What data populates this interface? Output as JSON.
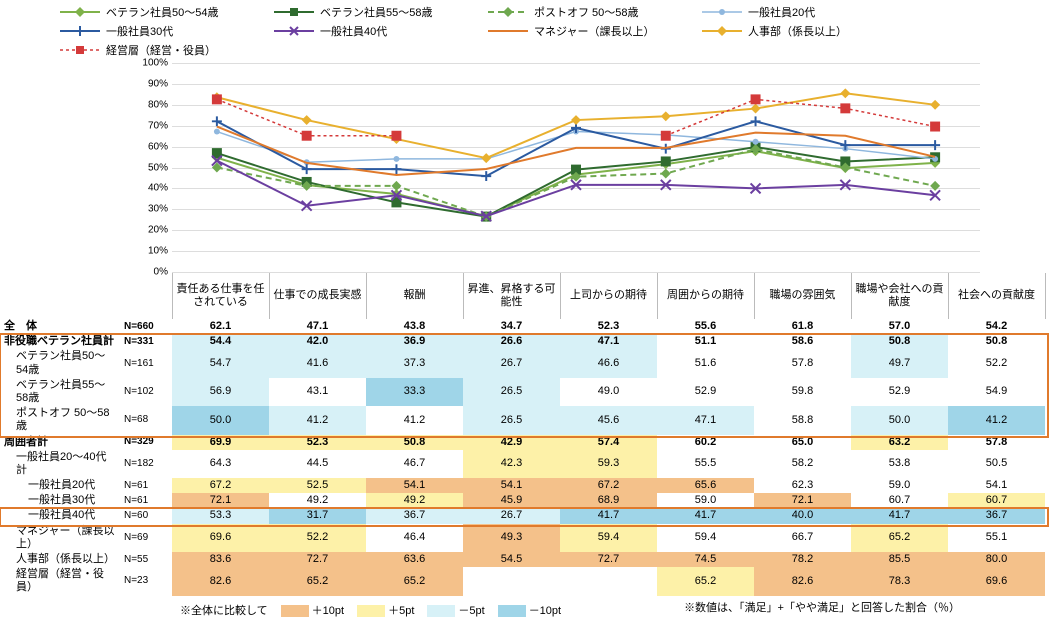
{
  "chart": {
    "ylim": [
      0,
      100
    ],
    "ytick_step": 10,
    "ytick_suffix": "%",
    "grid_color": "#dddddd",
    "axis_color": "#bbbbbb",
    "categories": [
      "責任ある仕事を任されている",
      "仕事での成長実感",
      "報酬",
      "昇進、昇格する可能性",
      "上司からの期待",
      "周囲からの期待",
      "職場の雰囲気",
      "職場や会社への貢献度",
      "社会への貢献度"
    ],
    "series": [
      {
        "key": "vet5054",
        "label": "ベテラン社員50～54歳",
        "color": "#7fb24a",
        "dash": null,
        "marker": "diamond",
        "ms": 5,
        "lw": 2,
        "values": [
          54.7,
          41.6,
          37.3,
          26.7,
          46.6,
          51.6,
          57.8,
          49.7,
          52.2
        ]
      },
      {
        "key": "vet5558",
        "label": "ベテラン社員55～58歳",
        "color": "#2f6b2f",
        "dash": null,
        "marker": "square",
        "ms": 5,
        "lw": 2,
        "values": [
          56.9,
          43.1,
          33.3,
          26.5,
          49.0,
          52.9,
          59.8,
          52.9,
          54.9
        ]
      },
      {
        "key": "postoff",
        "label": "ポストオフ 50～58歳",
        "color": "#6fa84f",
        "dash": "6 4",
        "marker": "diamond",
        "ms": 5,
        "lw": 2,
        "values": [
          50.0,
          41.2,
          41.2,
          26.5,
          45.6,
          47.1,
          58.8,
          50.0,
          41.2
        ]
      },
      {
        "key": "ippan20",
        "label": "一般社員20代",
        "color": "#8fb7de",
        "dash": null,
        "marker": "circle",
        "ms": 3,
        "lw": 1.5,
        "values": [
          67.2,
          52.5,
          54.1,
          54.1,
          67.2,
          65.6,
          62.3,
          59.0,
          54.1
        ]
      },
      {
        "key": "ippan30",
        "label": "一般社員30代",
        "color": "#2b5aa0",
        "dash": null,
        "marker": "plus",
        "ms": 5,
        "lw": 2,
        "values": [
          72.1,
          49.2,
          49.2,
          45.9,
          68.9,
          59.0,
          72.1,
          60.7,
          60.7
        ]
      },
      {
        "key": "ippan40",
        "label": "一般社員40代",
        "color": "#6b3fa0",
        "dash": null,
        "marker": "x",
        "ms": 5,
        "lw": 2,
        "values": [
          53.3,
          31.7,
          36.7,
          26.7,
          41.7,
          41.7,
          40.0,
          41.7,
          36.7
        ]
      },
      {
        "key": "mgr",
        "label": "マネジャー（課長以上）",
        "color": "#e07a2c",
        "dash": null,
        "marker": null,
        "ms": 0,
        "lw": 2,
        "values": [
          69.6,
          52.2,
          46.4,
          49.3,
          59.4,
          59.4,
          66.7,
          65.2,
          55.1
        ]
      },
      {
        "key": "hr",
        "label": "人事部（係長以上）",
        "color": "#e8b02e",
        "dash": null,
        "marker": "diamond",
        "ms": 5,
        "lw": 2,
        "values": [
          83.6,
          72.7,
          63.6,
          54.5,
          72.7,
          74.5,
          78.2,
          85.5,
          80.0
        ]
      },
      {
        "key": "exec",
        "label": "経営層（経営・役員）",
        "color": "#d43a3a",
        "dash": "3 3",
        "marker": "square",
        "ms": 5,
        "lw": 1.5,
        "values": [
          82.6,
          65.2,
          65.2,
          null,
          null,
          65.2,
          82.6,
          78.3,
          69.6
        ]
      }
    ]
  },
  "table": {
    "highlight_colors": {
      "p10": "#f4c18a",
      "p5": "#fdf1a8",
      "m5": "#d7f1f7",
      "m10": "#9fd5e8"
    },
    "rows": [
      {
        "label": "全　体",
        "n": "N=660",
        "bold": true,
        "indent": 0,
        "cells": [
          [
            "62.1",
            ""
          ],
          [
            "47.1",
            ""
          ],
          [
            "43.8",
            ""
          ],
          [
            "34.7",
            ""
          ],
          [
            "52.3",
            ""
          ],
          [
            "55.6",
            ""
          ],
          [
            "61.8",
            ""
          ],
          [
            "57.0",
            ""
          ],
          [
            "54.2",
            ""
          ]
        ]
      },
      {
        "label": "非役職ベテラン社員計",
        "n": "N=331",
        "bold": true,
        "indent": 0,
        "cells": [
          [
            "54.4",
            "m5"
          ],
          [
            "42.0",
            "m5"
          ],
          [
            "36.9",
            "m5"
          ],
          [
            "26.6",
            "m5"
          ],
          [
            "47.1",
            "m5"
          ],
          [
            "51.1",
            ""
          ],
          [
            "58.6",
            ""
          ],
          [
            "50.8",
            "m5"
          ],
          [
            "50.8",
            ""
          ]
        ]
      },
      {
        "label": "ベテラン社員50～54歳",
        "n": "N=161",
        "bold": false,
        "indent": 1,
        "cells": [
          [
            "54.7",
            "m5"
          ],
          [
            "41.6",
            "m5"
          ],
          [
            "37.3",
            "m5"
          ],
          [
            "26.7",
            "m5"
          ],
          [
            "46.6",
            "m5"
          ],
          [
            "51.6",
            ""
          ],
          [
            "57.8",
            ""
          ],
          [
            "49.7",
            "m5"
          ],
          [
            "52.2",
            ""
          ]
        ]
      },
      {
        "label": "ベテラン社員55～58歳",
        "n": "N=102",
        "bold": false,
        "indent": 1,
        "cells": [
          [
            "56.9",
            "m5"
          ],
          [
            "43.1",
            ""
          ],
          [
            "33.3",
            "m10"
          ],
          [
            "26.5",
            "m5"
          ],
          [
            "49.0",
            ""
          ],
          [
            "52.9",
            ""
          ],
          [
            "59.8",
            ""
          ],
          [
            "52.9",
            ""
          ],
          [
            "54.9",
            ""
          ]
        ]
      },
      {
        "label": "ポストオフ 50～58歳",
        "n": "N=68",
        "bold": false,
        "indent": 1,
        "cells": [
          [
            "50.0",
            "m10"
          ],
          [
            "41.2",
            "m5"
          ],
          [
            "41.2",
            ""
          ],
          [
            "26.5",
            "m5"
          ],
          [
            "45.6",
            "m5"
          ],
          [
            "47.1",
            "m5"
          ],
          [
            "58.8",
            ""
          ],
          [
            "50.0",
            "m5"
          ],
          [
            "41.2",
            "m10"
          ]
        ]
      },
      {
        "label": "周囲者計",
        "n": "N=329",
        "bold": true,
        "indent": 0,
        "cells": [
          [
            "69.9",
            "p5"
          ],
          [
            "52.3",
            "p5"
          ],
          [
            "50.8",
            "p5"
          ],
          [
            "42.9",
            "p5"
          ],
          [
            "57.4",
            "p5"
          ],
          [
            "60.2",
            ""
          ],
          [
            "65.0",
            ""
          ],
          [
            "63.2",
            "p5"
          ],
          [
            "57.8",
            ""
          ]
        ]
      },
      {
        "label": "一般社員20～40代計",
        "n": "N=182",
        "bold": false,
        "indent": 1,
        "cells": [
          [
            "64.3",
            ""
          ],
          [
            "44.5",
            ""
          ],
          [
            "46.7",
            ""
          ],
          [
            "42.3",
            "p5"
          ],
          [
            "59.3",
            "p5"
          ],
          [
            "55.5",
            ""
          ],
          [
            "58.2",
            ""
          ],
          [
            "53.8",
            ""
          ],
          [
            "50.5",
            ""
          ]
        ]
      },
      {
        "label": "一般社員20代",
        "n": "N=61",
        "bold": false,
        "indent": 2,
        "cells": [
          [
            "67.2",
            "p5"
          ],
          [
            "52.5",
            "p5"
          ],
          [
            "54.1",
            "p10"
          ],
          [
            "54.1",
            "p10"
          ],
          [
            "67.2",
            "p10"
          ],
          [
            "65.6",
            "p10"
          ],
          [
            "62.3",
            ""
          ],
          [
            "59.0",
            ""
          ],
          [
            "54.1",
            ""
          ]
        ]
      },
      {
        "label": "一般社員30代",
        "n": "N=61",
        "bold": false,
        "indent": 2,
        "cells": [
          [
            "72.1",
            "p10"
          ],
          [
            "49.2",
            ""
          ],
          [
            "49.2",
            "p5"
          ],
          [
            "45.9",
            "p10"
          ],
          [
            "68.9",
            "p10"
          ],
          [
            "59.0",
            ""
          ],
          [
            "72.1",
            "p10"
          ],
          [
            "60.7",
            ""
          ],
          [
            "60.7",
            "p5"
          ]
        ]
      },
      {
        "label": "一般社員40代",
        "n": "N=60",
        "bold": false,
        "indent": 2,
        "cells": [
          [
            "53.3",
            "m5"
          ],
          [
            "31.7",
            "m10"
          ],
          [
            "36.7",
            "m5"
          ],
          [
            "26.7",
            "m5"
          ],
          [
            "41.7",
            "m10"
          ],
          [
            "41.7",
            "m10"
          ],
          [
            "40.0",
            "m10"
          ],
          [
            "41.7",
            "m10"
          ],
          [
            "36.7",
            "m10"
          ]
        ]
      },
      {
        "label": "マネジャー（課長以上）",
        "n": "N=69",
        "bold": false,
        "indent": 1,
        "cells": [
          [
            "69.6",
            "p5"
          ],
          [
            "52.2",
            "p5"
          ],
          [
            "46.4",
            ""
          ],
          [
            "49.3",
            "p10"
          ],
          [
            "59.4",
            "p5"
          ],
          [
            "59.4",
            ""
          ],
          [
            "66.7",
            ""
          ],
          [
            "65.2",
            "p5"
          ],
          [
            "55.1",
            ""
          ]
        ]
      },
      {
        "label": "人事部（係長以上）",
        "n": "N=55",
        "bold": false,
        "indent": 1,
        "cells": [
          [
            "83.6",
            "p10"
          ],
          [
            "72.7",
            "p10"
          ],
          [
            "63.6",
            "p10"
          ],
          [
            "54.5",
            "p10"
          ],
          [
            "72.7",
            "p10"
          ],
          [
            "74.5",
            "p10"
          ],
          [
            "78.2",
            "p10"
          ],
          [
            "85.5",
            "p10"
          ],
          [
            "80.0",
            "p10"
          ]
        ]
      },
      {
        "label": "経営層（経営・役員）",
        "n": "N=23",
        "bold": false,
        "indent": 1,
        "cells": [
          [
            "82.6",
            "p10"
          ],
          [
            "65.2",
            "p10"
          ],
          [
            "65.2",
            "p10"
          ],
          [
            "",
            ""
          ],
          [
            "",
            ""
          ],
          [
            "65.2",
            "p5"
          ],
          [
            "82.6",
            "p10"
          ],
          [
            "78.3",
            "p10"
          ],
          [
            "69.6",
            "p10"
          ]
        ]
      }
    ],
    "highlight_boxes": [
      {
        "from_row": 1,
        "to_row": 4
      },
      {
        "from_row": 9,
        "to_row": 9
      }
    ]
  },
  "legend2": {
    "prefix": "※全体に比較して",
    "items": [
      {
        "label": "＋10pt",
        "color": "#f4c18a"
      },
      {
        "label": "＋5pt",
        "color": "#fdf1a8"
      },
      {
        "label": "－5pt",
        "color": "#d7f1f7"
      },
      {
        "label": "－10pt",
        "color": "#9fd5e8"
      }
    ],
    "note_right": "※数値は、「満足」+「やや満足」と回答した割合（％）"
  }
}
